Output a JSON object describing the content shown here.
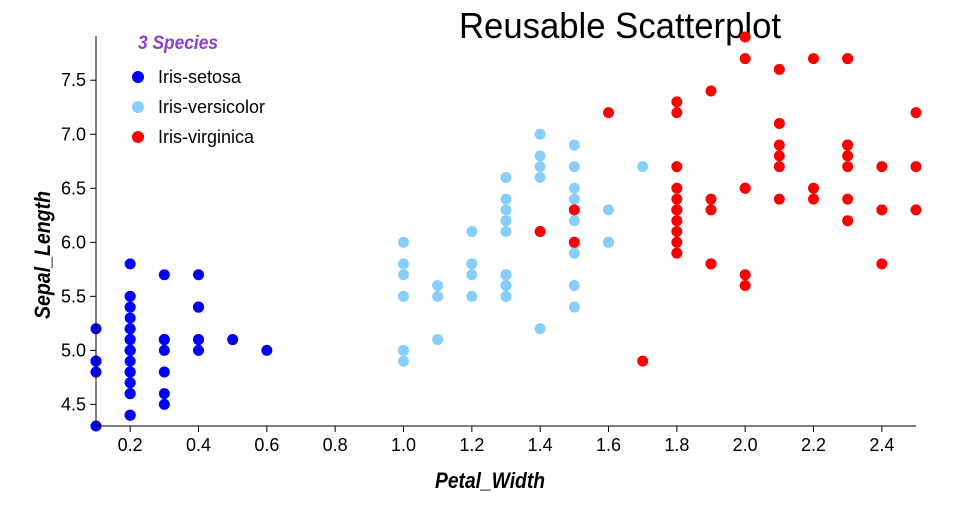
{
  "chart_data": {
    "type": "scatter",
    "title": "Reusable Scatterplot",
    "xlabel": "Petal_Width",
    "ylabel": "Sepal_Length",
    "xlim": [
      0.1,
      2.5
    ],
    "ylim": [
      4.3,
      7.9
    ],
    "xticks": [
      "0.2",
      "0.4",
      "0.6",
      "0.8",
      "1.0",
      "1.2",
      "1.4",
      "1.6",
      "1.8",
      "2.0",
      "2.2",
      "2.4"
    ],
    "yticks": [
      "4.5",
      "5.0",
      "5.5",
      "6.0",
      "6.5",
      "7.0",
      "7.5"
    ],
    "grid": false,
    "legend": {
      "title": "3 Species",
      "title_color": "#8a3fd0",
      "placement": "top-left"
    },
    "series": [
      {
        "name": "Iris-setosa",
        "color": "#0000ff",
        "points": [
          [
            0.2,
            5.1
          ],
          [
            0.2,
            4.9
          ],
          [
            0.2,
            4.7
          ],
          [
            0.2,
            4.6
          ],
          [
            0.2,
            5.0
          ],
          [
            0.4,
            5.4
          ],
          [
            0.3,
            4.6
          ],
          [
            0.2,
            5.0
          ],
          [
            0.2,
            4.4
          ],
          [
            0.1,
            4.9
          ],
          [
            0.2,
            5.4
          ],
          [
            0.2,
            4.8
          ],
          [
            0.1,
            4.8
          ],
          [
            0.1,
            4.3
          ],
          [
            0.2,
            5.8
          ],
          [
            0.4,
            5.7
          ],
          [
            0.4,
            5.4
          ],
          [
            0.3,
            5.1
          ],
          [
            0.3,
            5.7
          ],
          [
            0.3,
            5.1
          ],
          [
            0.2,
            5.4
          ],
          [
            0.4,
            5.1
          ],
          [
            0.2,
            4.6
          ],
          [
            0.5,
            5.1
          ],
          [
            0.2,
            4.8
          ],
          [
            0.2,
            5.0
          ],
          [
            0.4,
            5.0
          ],
          [
            0.2,
            5.2
          ],
          [
            0.2,
            5.2
          ],
          [
            0.2,
            4.7
          ],
          [
            0.2,
            4.8
          ],
          [
            0.4,
            5.4
          ],
          [
            0.1,
            5.2
          ],
          [
            0.2,
            5.5
          ],
          [
            0.1,
            4.9
          ],
          [
            0.2,
            5.0
          ],
          [
            0.2,
            5.5
          ],
          [
            0.1,
            4.9
          ],
          [
            0.2,
            4.4
          ],
          [
            0.2,
            5.1
          ],
          [
            0.3,
            5.0
          ],
          [
            0.3,
            4.5
          ],
          [
            0.2,
            4.4
          ],
          [
            0.6,
            5.0
          ],
          [
            0.4,
            5.1
          ],
          [
            0.3,
            4.8
          ],
          [
            0.2,
            5.1
          ],
          [
            0.2,
            4.6
          ],
          [
            0.2,
            5.3
          ],
          [
            0.2,
            5.0
          ]
        ]
      },
      {
        "name": "Iris-versicolor",
        "color": "#87cefa",
        "points": [
          [
            1.4,
            7.0
          ],
          [
            1.5,
            6.4
          ],
          [
            1.5,
            6.9
          ],
          [
            1.3,
            5.5
          ],
          [
            1.5,
            6.5
          ],
          [
            1.3,
            5.7
          ],
          [
            1.6,
            6.3
          ],
          [
            1.0,
            4.9
          ],
          [
            1.3,
            6.6
          ],
          [
            1.4,
            5.2
          ],
          [
            1.0,
            5.0
          ],
          [
            1.5,
            5.9
          ],
          [
            1.0,
            6.0
          ],
          [
            1.4,
            6.1
          ],
          [
            1.3,
            5.6
          ],
          [
            1.4,
            6.7
          ],
          [
            1.5,
            5.6
          ],
          [
            1.0,
            5.8
          ],
          [
            1.5,
            6.2
          ],
          [
            1.1,
            5.6
          ],
          [
            1.8,
            5.9
          ],
          [
            1.3,
            6.1
          ],
          [
            1.5,
            6.3
          ],
          [
            1.2,
            6.1
          ],
          [
            1.3,
            6.4
          ],
          [
            1.4,
            6.6
          ],
          [
            1.4,
            6.8
          ],
          [
            1.7,
            6.7
          ],
          [
            1.5,
            6.0
          ],
          [
            1.0,
            5.7
          ],
          [
            1.1,
            5.5
          ],
          [
            1.0,
            5.5
          ],
          [
            1.2,
            5.8
          ],
          [
            1.6,
            6.0
          ],
          [
            1.5,
            5.4
          ],
          [
            1.6,
            6.0
          ],
          [
            1.5,
            6.7
          ],
          [
            1.3,
            6.3
          ],
          [
            1.3,
            5.6
          ],
          [
            1.3,
            5.5
          ],
          [
            1.2,
            5.5
          ],
          [
            1.4,
            6.1
          ],
          [
            1.2,
            5.8
          ],
          [
            1.0,
            5.0
          ],
          [
            1.3,
            5.6
          ],
          [
            1.2,
            5.7
          ],
          [
            1.3,
            5.7
          ],
          [
            1.3,
            6.2
          ],
          [
            1.1,
            5.1
          ],
          [
            1.3,
            5.7
          ]
        ]
      },
      {
        "name": "Iris-virginica",
        "color": "#ff0000",
        "points": [
          [
            2.5,
            6.3
          ],
          [
            1.9,
            5.8
          ],
          [
            2.1,
            7.1
          ],
          [
            1.8,
            6.3
          ],
          [
            2.2,
            6.5
          ],
          [
            2.1,
            7.6
          ],
          [
            1.7,
            4.9
          ],
          [
            1.8,
            7.3
          ],
          [
            1.8,
            6.7
          ],
          [
            2.5,
            7.2
          ],
          [
            2.0,
            6.5
          ],
          [
            1.9,
            6.4
          ],
          [
            2.1,
            6.8
          ],
          [
            2.0,
            5.7
          ],
          [
            2.4,
            5.8
          ],
          [
            2.3,
            6.4
          ],
          [
            1.8,
            6.5
          ],
          [
            2.2,
            7.7
          ],
          [
            2.3,
            7.7
          ],
          [
            1.5,
            6.0
          ],
          [
            2.3,
            6.9
          ],
          [
            2.0,
            5.6
          ],
          [
            2.0,
            7.7
          ],
          [
            1.8,
            6.3
          ],
          [
            2.1,
            6.7
          ],
          [
            1.8,
            7.2
          ],
          [
            1.8,
            6.2
          ],
          [
            1.8,
            6.1
          ],
          [
            2.1,
            6.4
          ],
          [
            1.6,
            7.2
          ],
          [
            1.9,
            7.4
          ],
          [
            2.0,
            7.9
          ],
          [
            2.2,
            6.4
          ],
          [
            1.5,
            6.3
          ],
          [
            1.4,
            6.1
          ],
          [
            2.3,
            7.7
          ],
          [
            2.4,
            6.3
          ],
          [
            1.8,
            6.4
          ],
          [
            1.8,
            6.0
          ],
          [
            2.1,
            6.9
          ],
          [
            2.4,
            6.7
          ],
          [
            2.3,
            6.9
          ],
          [
            1.9,
            5.8
          ],
          [
            2.3,
            6.8
          ],
          [
            2.5,
            6.7
          ],
          [
            2.3,
            6.7
          ],
          [
            1.9,
            6.3
          ],
          [
            2.0,
            6.5
          ],
          [
            2.3,
            6.2
          ],
          [
            1.8,
            5.9
          ]
        ]
      }
    ]
  }
}
